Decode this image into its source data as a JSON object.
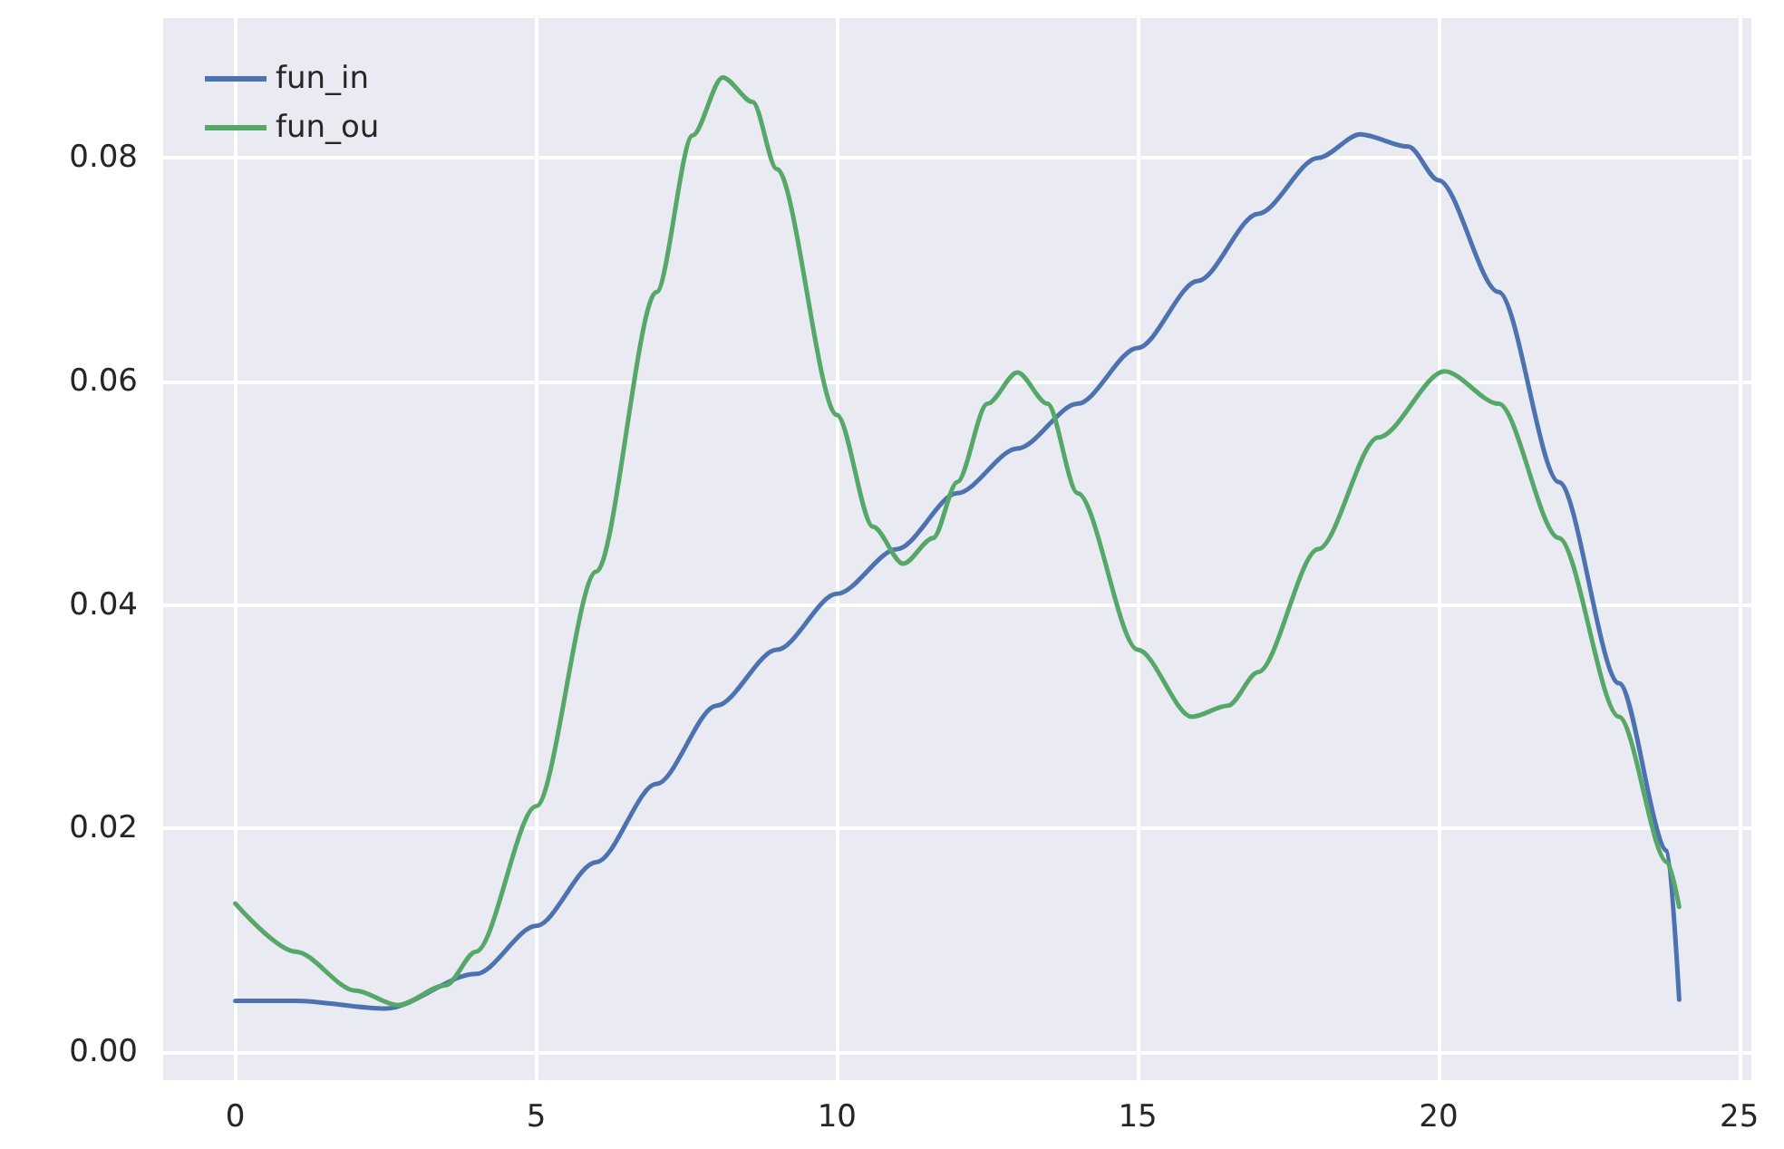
{
  "chart_data": {
    "type": "line",
    "xlim": [
      -1.2,
      25.2
    ],
    "xticks": [
      0,
      5,
      10,
      15,
      20,
      25
    ],
    "ylim": [
      -0.0025,
      0.0925
    ],
    "yticks": [
      {
        "value": 0,
        "label": "0.00"
      },
      {
        "value": 0.02,
        "label": "0.02"
      },
      {
        "value": 0.04,
        "label": "0.04"
      },
      {
        "value": 0.06,
        "label": "0.06"
      },
      {
        "value": 0.08,
        "label": "0.08"
      }
    ],
    "grid": true,
    "legend": "top left",
    "marker": "none",
    "line_style": "solid",
    "series": [
      {
        "name": "fun_in",
        "color": "#4c72b0",
        "x": [
          0,
          1,
          2.5,
          4,
          5,
          6,
          7,
          8,
          9,
          10,
          11,
          12,
          13,
          14,
          15,
          16,
          17,
          18,
          18.7,
          19.5,
          20,
          21,
          22,
          23,
          23.8,
          24
        ],
        "values": [
          0.0046,
          0.0046,
          0.0039,
          0.007,
          0.0113,
          0.017,
          0.024,
          0.031,
          0.036,
          0.041,
          0.045,
          0.05,
          0.054,
          0.058,
          0.063,
          0.069,
          0.075,
          0.08,
          0.0821,
          0.081,
          0.078,
          0.068,
          0.051,
          0.033,
          0.018,
          0.0047
        ]
      },
      {
        "name": "fun_ou",
        "color": "#55a868",
        "x": [
          0,
          1,
          2,
          2.7,
          3.5,
          4,
          5,
          6,
          7,
          7.6,
          8.1,
          8.6,
          9,
          10,
          10.6,
          11.1,
          11.6,
          12,
          12.5,
          13,
          13.5,
          14,
          15,
          15.9,
          16.5,
          17,
          18,
          19,
          20.1,
          21,
          22,
          23,
          23.8,
          24
        ],
        "values": [
          0.0133,
          0.009,
          0.0055,
          0.0042,
          0.006,
          0.009,
          0.022,
          0.043,
          0.068,
          0.082,
          0.0872,
          0.085,
          0.079,
          0.057,
          0.047,
          0.0437,
          0.046,
          0.051,
          0.058,
          0.0608,
          0.058,
          0.05,
          0.036,
          0.03,
          0.031,
          0.034,
          0.045,
          0.055,
          0.0609,
          0.058,
          0.046,
          0.03,
          0.017,
          0.013
        ]
      }
    ]
  }
}
